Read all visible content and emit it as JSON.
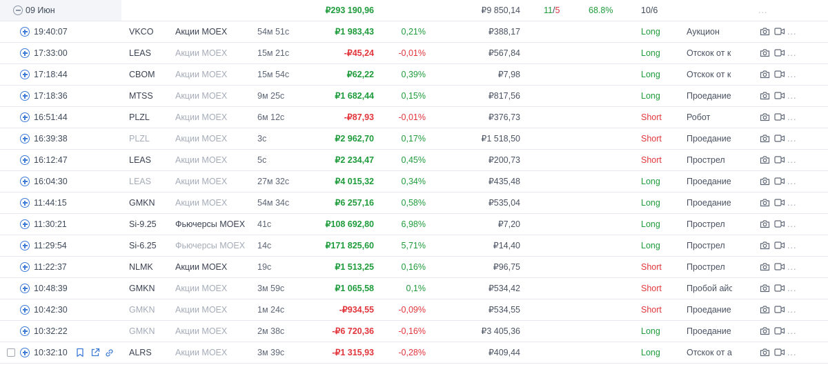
{
  "group": {
    "date": "09 Июн",
    "pnl": "₽293 190,96",
    "volume": "₽9 850,14",
    "wins": "11",
    "losses": "5",
    "win_rate": "68.8%",
    "ratio": "10/6",
    "more": "..."
  },
  "more_label": "...",
  "colors": {
    "profit": "#1e9b3b",
    "loss": "#e2353b",
    "accent": "#3d7ad6"
  },
  "trades": [
    {
      "time": "19:40:07",
      "ticker": "VKCO",
      "ticker_dim": false,
      "market": "Акции MOEX",
      "market_dim": false,
      "duration": "54м 51с",
      "pnl": "₽1 983,43",
      "pnl_sign": "pos",
      "pct": "0,21%",
      "volume": "₽388,17",
      "side": "Long",
      "strategy": "Аукцион"
    },
    {
      "time": "17:33:00",
      "ticker": "LEAS",
      "ticker_dim": false,
      "market": "Акции MOEX",
      "market_dim": true,
      "duration": "15м 21с",
      "pnl": "-₽45,24",
      "pnl_sign": "neg",
      "pct": "-0,01%",
      "volume": "₽567,84",
      "side": "Long",
      "strategy": "Отскок от к"
    },
    {
      "time": "17:18:44",
      "ticker": "CBOM",
      "ticker_dim": false,
      "market": "Акции MOEX",
      "market_dim": true,
      "duration": "15м 54с",
      "pnl": "₽62,22",
      "pnl_sign": "pos",
      "pct": "0,39%",
      "volume": "₽7,98",
      "side": "Long",
      "strategy": "Отскок от к"
    },
    {
      "time": "17:18:36",
      "ticker": "MTSS",
      "ticker_dim": false,
      "market": "Акции MOEX",
      "market_dim": true,
      "duration": "9м 25с",
      "pnl": "₽1 682,44",
      "pnl_sign": "pos",
      "pct": "0,15%",
      "volume": "₽817,56",
      "side": "Long",
      "strategy": "Проедание"
    },
    {
      "time": "16:51:44",
      "ticker": "PLZL",
      "ticker_dim": false,
      "market": "Акции MOEX",
      "market_dim": true,
      "duration": "6м 12с",
      "pnl": "-₽87,93",
      "pnl_sign": "neg",
      "pct": "-0,01%",
      "volume": "₽376,73",
      "side": "Short",
      "strategy": "Робот"
    },
    {
      "time": "16:39:38",
      "ticker": "PLZL",
      "ticker_dim": true,
      "market": "Акции MOEX",
      "market_dim": true,
      "duration": "3с",
      "pnl": "₽2 962,70",
      "pnl_sign": "pos",
      "pct": "0,17%",
      "volume": "₽1 518,50",
      "side": "Short",
      "strategy": "Проедание"
    },
    {
      "time": "16:12:47",
      "ticker": "LEAS",
      "ticker_dim": false,
      "market": "Акции MOEX",
      "market_dim": true,
      "duration": "5с",
      "pnl": "₽2 234,47",
      "pnl_sign": "pos",
      "pct": "0,45%",
      "volume": "₽200,73",
      "side": "Short",
      "strategy": "Прострел"
    },
    {
      "time": "16:04:30",
      "ticker": "LEAS",
      "ticker_dim": true,
      "market": "Акции MOEX",
      "market_dim": true,
      "duration": "27м 32с",
      "pnl": "₽4 015,32",
      "pnl_sign": "pos",
      "pct": "0,34%",
      "volume": "₽435,48",
      "side": "Long",
      "strategy": "Проедание"
    },
    {
      "time": "11:44:15",
      "ticker": "GMKN",
      "ticker_dim": false,
      "market": "Акции MOEX",
      "market_dim": true,
      "duration": "54м 34с",
      "pnl": "₽6 257,16",
      "pnl_sign": "pos",
      "pct": "0,58%",
      "volume": "₽535,04",
      "side": "Long",
      "strategy": "Проедание"
    },
    {
      "time": "11:30:21",
      "ticker": "Si-9.25",
      "ticker_dim": false,
      "market": "Фьючерсы MOEX",
      "market_dim": false,
      "duration": "41с",
      "pnl": "₽108 692,80",
      "pnl_sign": "pos",
      "pct": "6,98%",
      "volume": "₽7,20",
      "side": "Long",
      "strategy": "Прострел"
    },
    {
      "time": "11:29:54",
      "ticker": "Si-6.25",
      "ticker_dim": false,
      "market": "Фьючерсы MOEX",
      "market_dim": true,
      "duration": "14с",
      "pnl": "₽171 825,60",
      "pnl_sign": "pos",
      "pct": "5,71%",
      "volume": "₽14,40",
      "side": "Long",
      "strategy": "Прострел"
    },
    {
      "time": "11:22:37",
      "ticker": "NLMK",
      "ticker_dim": false,
      "market": "Акции MOEX",
      "market_dim": false,
      "duration": "19с",
      "pnl": "₽1 513,25",
      "pnl_sign": "pos",
      "pct": "0,16%",
      "volume": "₽96,75",
      "side": "Short",
      "strategy": "Прострел"
    },
    {
      "time": "10:48:39",
      "ticker": "GMKN",
      "ticker_dim": false,
      "market": "Акции MOEX",
      "market_dim": true,
      "duration": "3м 59с",
      "pnl": "₽1 065,58",
      "pnl_sign": "pos",
      "pct": "0,1%",
      "volume": "₽534,42",
      "side": "Short",
      "strategy": "Пробой айс"
    },
    {
      "time": "10:42:30",
      "ticker": "GMKN",
      "ticker_dim": true,
      "market": "Акции MOEX",
      "market_dim": true,
      "duration": "1м 24с",
      "pnl": "-₽934,55",
      "pnl_sign": "neg",
      "pct": "-0,09%",
      "volume": "₽534,55",
      "side": "Short",
      "strategy": "Проедание"
    },
    {
      "time": "10:32:22",
      "ticker": "GMKN",
      "ticker_dim": true,
      "market": "Акции MOEX",
      "market_dim": true,
      "duration": "2м 38с",
      "pnl": "-₽6 720,36",
      "pnl_sign": "neg",
      "pct": "-0,16%",
      "volume": "₽3 405,36",
      "side": "Long",
      "strategy": "Проедание"
    },
    {
      "time": "10:32:10",
      "ticker": "ALRS",
      "ticker_dim": false,
      "market": "Акции MOEX",
      "market_dim": true,
      "duration": "3м 39с",
      "pnl": "-₽1 315,93",
      "pnl_sign": "neg",
      "pct": "-0,28%",
      "volume": "₽409,44",
      "side": "Long",
      "strategy": "Отскок от а",
      "hovered": true
    }
  ]
}
